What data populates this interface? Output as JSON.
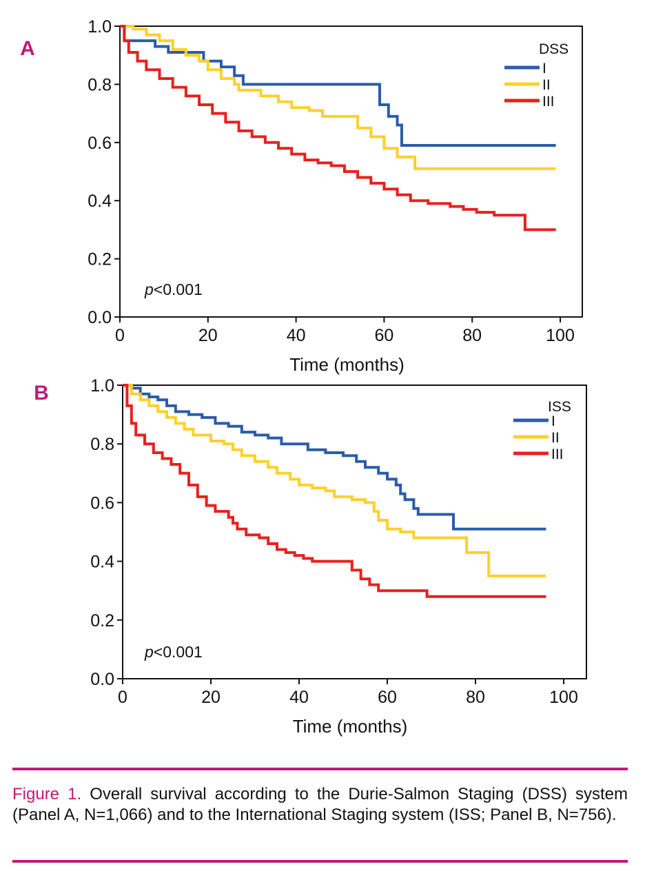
{
  "colors": {
    "accent": "#c2187a",
    "stage_I": "#2a5caa",
    "stage_II": "#ffd02a",
    "stage_III": "#e8201e"
  },
  "chart_data": [
    {
      "type": "line",
      "panel": "A",
      "title": "",
      "xlabel": "Time (months)",
      "ylabel": "",
      "xlim": [
        0,
        100
      ],
      "ylim": [
        0.0,
        1.0
      ],
      "xticks": [
        "0",
        "20",
        "40",
        "60",
        "80",
        "100"
      ],
      "yticks": [
        "0.0",
        "0.2",
        "0.4",
        "0.6",
        "0.8",
        "1.0"
      ],
      "legend_title": "DSS",
      "legend_position": "top-right",
      "annotation": {
        "italic": "p",
        "rest": "<0.001"
      },
      "series": [
        {
          "name": "I",
          "color": "#2a5caa",
          "points": [
            [
              0,
              1.0
            ],
            [
              1,
              0.95
            ],
            [
              5,
              0.95
            ],
            [
              8,
              0.93
            ],
            [
              11,
              0.91
            ],
            [
              19,
              0.88
            ],
            [
              23,
              0.86
            ],
            [
              26,
              0.83
            ],
            [
              28,
              0.8
            ],
            [
              55,
              0.8
            ],
            [
              59,
              0.73
            ],
            [
              61,
              0.69
            ],
            [
              63,
              0.66
            ],
            [
              64,
              0.59
            ],
            [
              99,
              0.59
            ]
          ]
        },
        {
          "name": "II",
          "color": "#ffd02a",
          "points": [
            [
              0,
              1.0
            ],
            [
              3,
              0.99
            ],
            [
              6,
              0.97
            ],
            [
              9,
              0.95
            ],
            [
              12,
              0.92
            ],
            [
              15,
              0.9
            ],
            [
              18,
              0.88
            ],
            [
              20,
              0.85
            ],
            [
              23,
              0.82
            ],
            [
              26,
              0.8
            ],
            [
              27,
              0.78
            ],
            [
              32,
              0.76
            ],
            [
              36,
              0.74
            ],
            [
              39,
              0.72
            ],
            [
              43,
              0.71
            ],
            [
              46,
              0.69
            ],
            [
              52,
              0.69
            ],
            [
              54,
              0.65
            ],
            [
              57,
              0.62
            ],
            [
              60,
              0.58
            ],
            [
              63,
              0.55
            ],
            [
              67,
              0.51
            ],
            [
              99,
              0.51
            ]
          ]
        },
        {
          "name": "III",
          "color": "#e8201e",
          "points": [
            [
              0,
              1.0
            ],
            [
              1,
              0.95
            ],
            [
              2,
              0.91
            ],
            [
              4,
              0.88
            ],
            [
              6,
              0.85
            ],
            [
              9,
              0.82
            ],
            [
              12,
              0.79
            ],
            [
              15,
              0.76
            ],
            [
              18,
              0.73
            ],
            [
              21,
              0.7
            ],
            [
              24,
              0.67
            ],
            [
              27,
              0.64
            ],
            [
              30,
              0.62
            ],
            [
              33,
              0.6
            ],
            [
              36,
              0.58
            ],
            [
              39,
              0.56
            ],
            [
              42,
              0.54
            ],
            [
              45,
              0.53
            ],
            [
              48,
              0.52
            ],
            [
              51,
              0.5
            ],
            [
              54,
              0.48
            ],
            [
              57,
              0.46
            ],
            [
              60,
              0.44
            ],
            [
              63,
              0.42
            ],
            [
              66,
              0.4
            ],
            [
              70,
              0.39
            ],
            [
              75,
              0.38
            ],
            [
              78,
              0.37
            ],
            [
              81,
              0.36
            ],
            [
              85,
              0.35
            ],
            [
              92,
              0.3
            ],
            [
              99,
              0.3
            ]
          ]
        }
      ]
    },
    {
      "type": "line",
      "panel": "B",
      "title": "",
      "xlabel": "Time (months)",
      "ylabel": "",
      "xlim": [
        0,
        100
      ],
      "ylim": [
        0.0,
        1.0
      ],
      "xticks": [
        "0",
        "20",
        "40",
        "60",
        "80",
        "100"
      ],
      "yticks": [
        "0.0",
        "0.2",
        "0.4",
        "0.6",
        "0.8",
        "1.0"
      ],
      "legend_title": "ISS",
      "legend_position": "top-right",
      "annotation": {
        "italic": "p",
        "rest": "<0.001"
      },
      "series": [
        {
          "name": "I",
          "color": "#2a5caa",
          "points": [
            [
              0,
              1.0
            ],
            [
              2,
              0.99
            ],
            [
              4,
              0.97
            ],
            [
              6,
              0.96
            ],
            [
              8,
              0.95
            ],
            [
              10,
              0.93
            ],
            [
              12,
              0.91
            ],
            [
              15,
              0.9
            ],
            [
              18,
              0.89
            ],
            [
              21,
              0.87
            ],
            [
              24,
              0.86
            ],
            [
              27,
              0.84
            ],
            [
              30,
              0.83
            ],
            [
              33,
              0.82
            ],
            [
              36,
              0.8
            ],
            [
              40,
              0.8
            ],
            [
              42,
              0.78
            ],
            [
              46,
              0.77
            ],
            [
              50,
              0.76
            ],
            [
              53,
              0.74
            ],
            [
              55,
              0.72
            ],
            [
              58,
              0.7
            ],
            [
              60,
              0.68
            ],
            [
              62,
              0.66
            ],
            [
              63,
              0.63
            ],
            [
              64,
              0.61
            ],
            [
              66,
              0.58
            ],
            [
              67,
              0.56
            ],
            [
              70,
              0.56
            ],
            [
              75,
              0.51
            ],
            [
              96,
              0.51
            ]
          ]
        },
        {
          "name": "II",
          "color": "#ffd02a",
          "points": [
            [
              0,
              1.0
            ],
            [
              2,
              0.97
            ],
            [
              4,
              0.95
            ],
            [
              6,
              0.93
            ],
            [
              8,
              0.91
            ],
            [
              10,
              0.89
            ],
            [
              12,
              0.87
            ],
            [
              14,
              0.85
            ],
            [
              16,
              0.83
            ],
            [
              20,
              0.81
            ],
            [
              23,
              0.8
            ],
            [
              25,
              0.78
            ],
            [
              27,
              0.76
            ],
            [
              30,
              0.74
            ],
            [
              33,
              0.72
            ],
            [
              35,
              0.7
            ],
            [
              38,
              0.68
            ],
            [
              40,
              0.66
            ],
            [
              43,
              0.65
            ],
            [
              46,
              0.64
            ],
            [
              48,
              0.62
            ],
            [
              52,
              0.61
            ],
            [
              55,
              0.6
            ],
            [
              57,
              0.57
            ],
            [
              58,
              0.54
            ],
            [
              60,
              0.51
            ],
            [
              63,
              0.5
            ],
            [
              66,
              0.48
            ],
            [
              70,
              0.48
            ],
            [
              78,
              0.43
            ],
            [
              82,
              0.43
            ],
            [
              83,
              0.35
            ],
            [
              96,
              0.35
            ]
          ]
        },
        {
          "name": "III",
          "color": "#e8201e",
          "points": [
            [
              0,
              1.0
            ],
            [
              1,
              0.93
            ],
            [
              2,
              0.87
            ],
            [
              3,
              0.83
            ],
            [
              5,
              0.8
            ],
            [
              7,
              0.77
            ],
            [
              9,
              0.75
            ],
            [
              11,
              0.73
            ],
            [
              13,
              0.7
            ],
            [
              15,
              0.66
            ],
            [
              17,
              0.62
            ],
            [
              19,
              0.59
            ],
            [
              21,
              0.57
            ],
            [
              24,
              0.55
            ],
            [
              25,
              0.53
            ],
            [
              26,
              0.51
            ],
            [
              28,
              0.49
            ],
            [
              31,
              0.48
            ],
            [
              33,
              0.46
            ],
            [
              35,
              0.44
            ],
            [
              37,
              0.43
            ],
            [
              39,
              0.42
            ],
            [
              41,
              0.41
            ],
            [
              43,
              0.4
            ],
            [
              50,
              0.4
            ],
            [
              52,
              0.37
            ],
            [
              54,
              0.34
            ],
            [
              56,
              0.32
            ],
            [
              58,
              0.3
            ],
            [
              68,
              0.3
            ],
            [
              69,
              0.28
            ],
            [
              96,
              0.28
            ]
          ]
        }
      ]
    }
  ],
  "caption": {
    "label": "Figure 1.",
    "text": " Overall survival according to the Durie-Salmon Staging (DSS) system (Panel A, N=1,066) and to the International Staging system (ISS; Panel B, N=756)."
  }
}
